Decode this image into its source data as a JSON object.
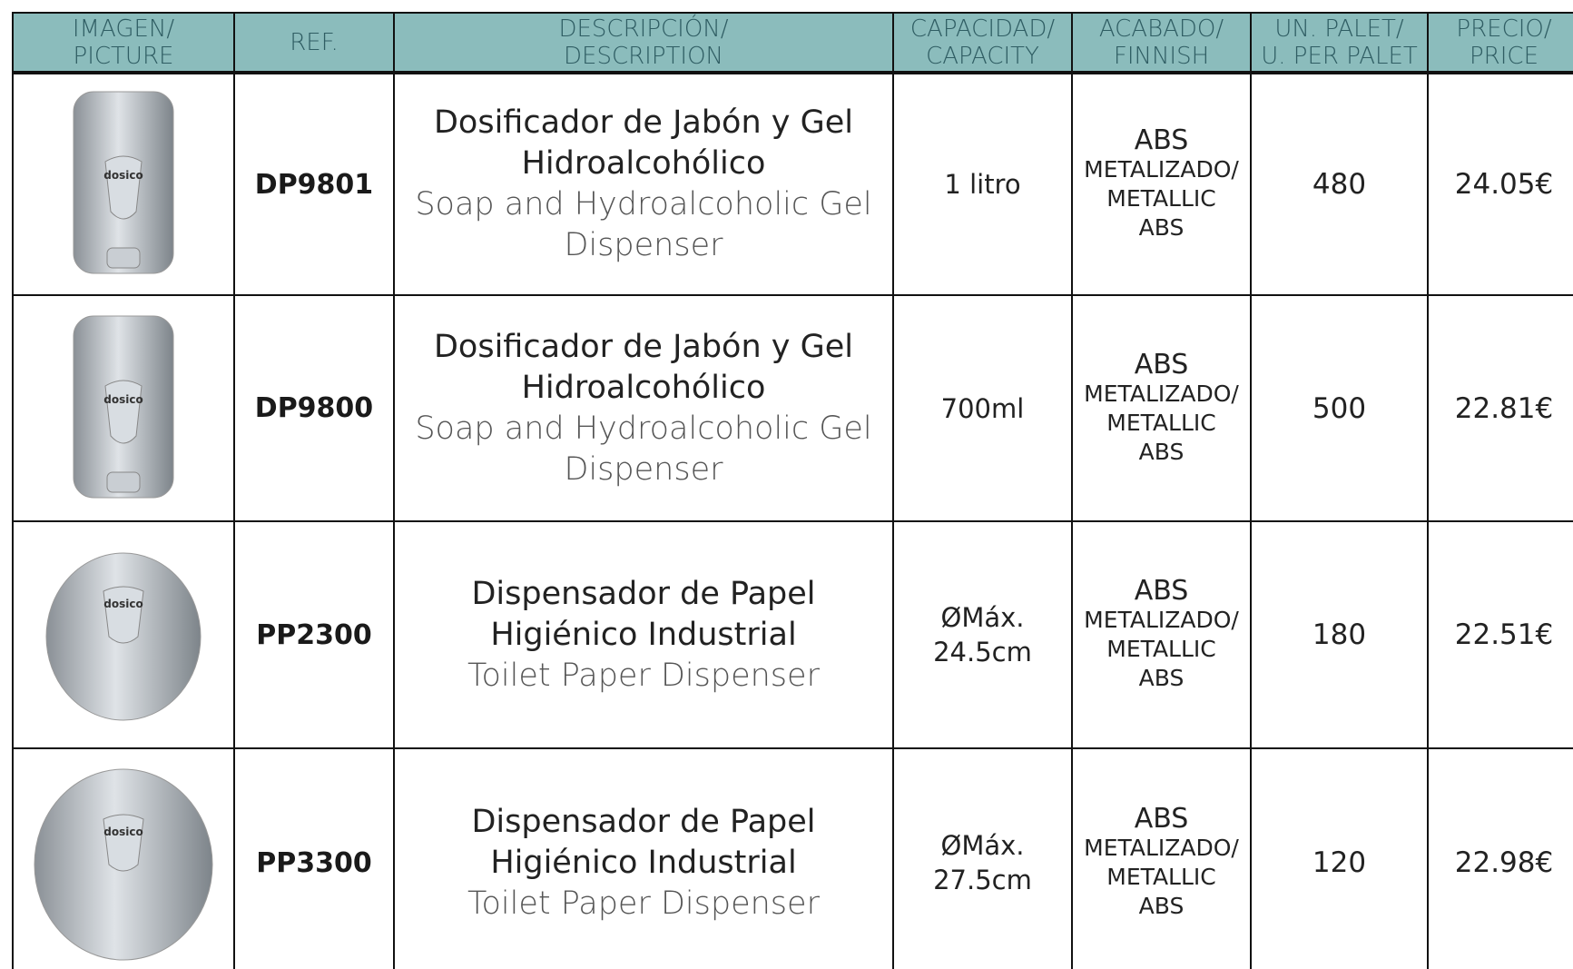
{
  "table": {
    "header": [
      [
        "IMAGEN/",
        "PICTURE"
      ],
      [
        "REF."
      ],
      [
        "DESCRIPCIÓN/",
        "DESCRIPTION"
      ],
      [
        "CAPACIDAD/",
        "CAPACITY"
      ],
      [
        "ACABADO/",
        "FINNISH"
      ],
      [
        "UN. PALET/",
        "U. PER PALET"
      ],
      [
        "PRECIO/",
        "PRICE"
      ]
    ],
    "rows": [
      {
        "logo": "dosico",
        "ref": "DP9801",
        "desc_es": [
          "Dosificador de Jabón y Gel",
          "Hidroalcohólico"
        ],
        "desc_en": [
          "Soap and Hydroalcoholic Gel",
          "Dispenser"
        ],
        "capacity": [
          "1 litro"
        ],
        "finish": [
          "ABS",
          "METALIZADO/",
          "METALLIC",
          "ABS"
        ],
        "units": "480",
        "price": "24.05€"
      },
      {
        "logo": "dosico",
        "ref": "DP9800",
        "desc_es": [
          "Dosificador de Jabón y Gel",
          "Hidroalcohólico"
        ],
        "desc_en": [
          "Soap and Hydroalcoholic Gel",
          "Dispenser"
        ],
        "capacity": [
          "700ml"
        ],
        "finish": [
          "ABS",
          "METALIZADO/",
          "METALLIC",
          "ABS"
        ],
        "units": "500",
        "price": "22.81€"
      },
      {
        "logo": "dosico",
        "ref": "PP2300",
        "desc_es": [
          "Dispensador de Papel",
          "Higiénico Industrial"
        ],
        "desc_en": [
          "Toilet Paper Dispenser"
        ],
        "capacity": [
          "ØMáx.",
          "24.5cm"
        ],
        "finish": [
          "ABS",
          "METALIZADO/",
          "METALLIC",
          "ABS"
        ],
        "units": "180",
        "price": "22.51€"
      },
      {
        "logo": "dosico",
        "ref": "PP3300",
        "desc_es": [
          "Dispensador de Papel",
          "Higiénico Industrial"
        ],
        "desc_en": [
          "Toilet Paper Dispenser"
        ],
        "capacity": [
          "ØMáx.",
          "27.5cm"
        ],
        "finish": [
          "ABS",
          "METALIZADO/",
          "METALLIC",
          "ABS"
        ],
        "units": "120",
        "price": "22.98€"
      }
    ]
  }
}
